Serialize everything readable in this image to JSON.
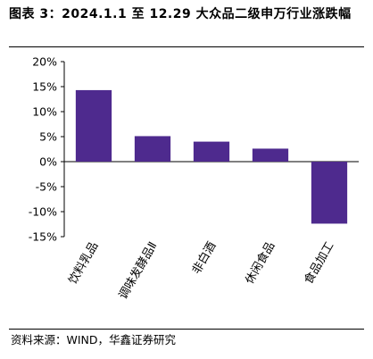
{
  "title": "图表 3：2024.1.1 至 12.29 大众品二级申万行业涨跌幅",
  "source": "资料来源：WIND，华鑫证券研究",
  "colors": {
    "bar": "#4e2a8e",
    "axis": "#000000"
  },
  "chart_data": {
    "type": "bar",
    "categories": [
      "饮料乳品",
      "调味发酵品Ⅱ",
      "非白酒",
      "休闲食品",
      "食品加工"
    ],
    "values": [
      14.3,
      5.1,
      4.0,
      2.6,
      -12.4
    ],
    "ylim": [
      -15,
      20
    ],
    "yticks": [
      -15,
      -10,
      -5,
      0,
      5,
      10,
      15,
      20
    ],
    "ytick_labels": [
      "-15%",
      "-10%",
      "-5%",
      "0%",
      "5%",
      "10%",
      "15%",
      "20%"
    ],
    "xlabel": "",
    "ylabel": "",
    "grid": false,
    "legend": "none"
  }
}
